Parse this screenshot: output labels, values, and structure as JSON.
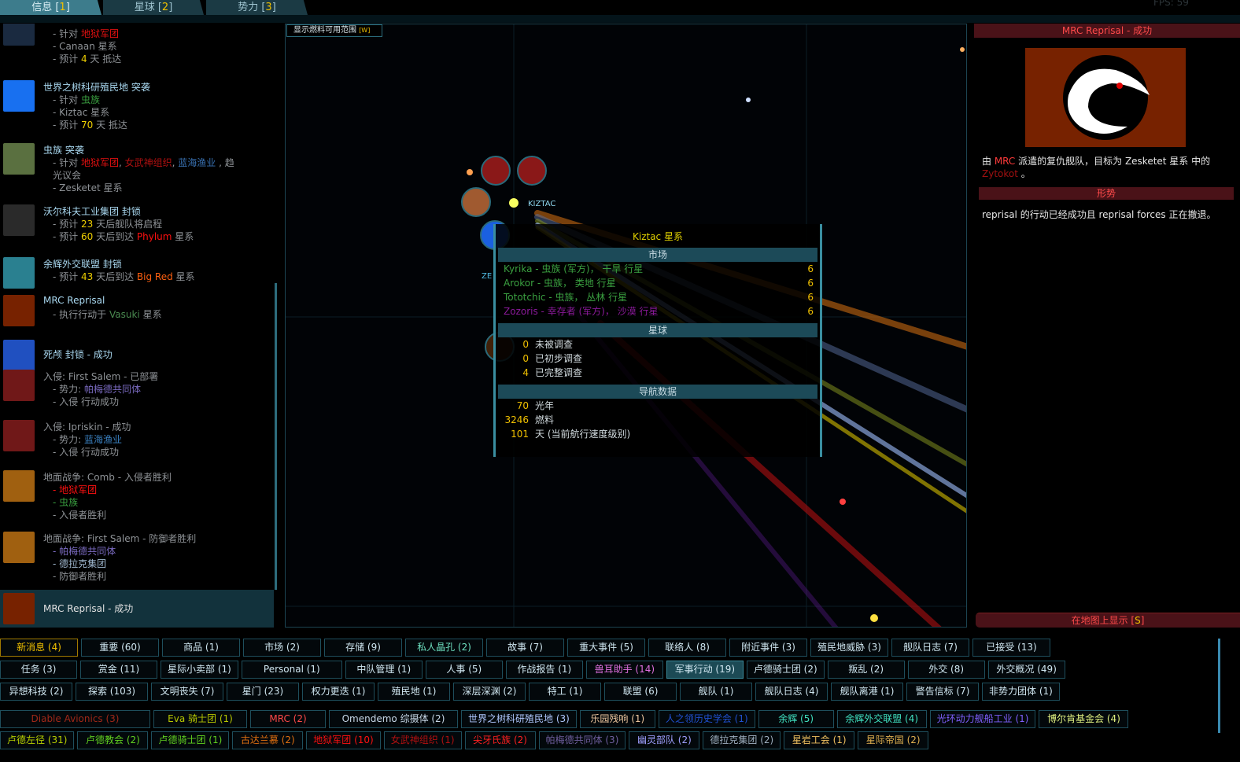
{
  "tabs": [
    {
      "label": "信息 [",
      "key": "1",
      "suffix": "]",
      "active": true
    },
    {
      "label": "星球 [",
      "key": "2",
      "suffix": "]"
    },
    {
      "label": "势力 [",
      "key": "3",
      "suffix": "]"
    }
  ],
  "fps_label": "FPS: 59",
  "map": {
    "fuel_button": "显示燃料可用范围",
    "fuel_key": "[W]",
    "system_label": "KIZTAC",
    "system_label2": "ZE"
  },
  "intel_items": [
    {
      "title": "",
      "icon": "triangle-faction-icon",
      "icon_color": "#1a2a40",
      "lines": [
        [
          {
            "t": "- 针对 "
          },
          {
            "t": "地狱军团",
            "c": "#e01010"
          }
        ],
        [
          {
            "t": "- Canaan 星系"
          }
        ],
        [
          {
            "t": "- 预计 "
          },
          {
            "t": "4",
            "c": "#f0d000"
          },
          {
            "t": " 天 抵达"
          }
        ]
      ]
    },
    {
      "title": "世界之树科研殖民地 突袭",
      "icon": "owl-faction-icon",
      "icon_color": "#1870f0",
      "lines": [
        [
          {
            "t": "- 针对 "
          },
          {
            "t": "虫族",
            "c": "#3aa040"
          }
        ],
        [
          {
            "t": "- Kiztac 星系"
          }
        ],
        [
          {
            "t": "- 预计 "
          },
          {
            "t": "70",
            "c": "#f0d000"
          },
          {
            "t": " 天 抵达"
          }
        ]
      ]
    },
    {
      "title": "虫族 突袭",
      "icon": "hive-faction-icon",
      "icon_color": "#5a7040",
      "lines": [
        [
          {
            "t": "- 针对 "
          },
          {
            "t": "地狱军团",
            "c": "#e01010"
          },
          {
            "t": ", "
          },
          {
            "t": "女武神组织",
            "c": "#b01010"
          },
          {
            "t": ", "
          },
          {
            "t": "蓝海渔业",
            "c": "#3870b0"
          },
          {
            "t": " , 趋"
          }
        ],
        [
          {
            "t": "  光议会"
          }
        ],
        [
          {
            "t": "- Zesketet 星系"
          }
        ]
      ]
    },
    {
      "title": "沃尔科夫工业集团 封锁",
      "icon": "v-faction-icon",
      "icon_color": "#2a2a2a",
      "lines": [
        [
          {
            "t": "- 预计 "
          },
          {
            "t": "23",
            "c": "#f0d000"
          },
          {
            "t": " 天后舰队将启程"
          }
        ],
        [
          {
            "t": "- 预计 "
          },
          {
            "t": "60",
            "c": "#f0d000"
          },
          {
            "t": " 天后到达 "
          },
          {
            "t": "Phylum",
            "c": "#ff1010"
          },
          {
            "t": " 星系"
          }
        ]
      ]
    },
    {
      "title": "余辉外交联盟 封锁",
      "icon": "afterglow-faction-icon",
      "icon_color": "#2a8090",
      "lines": [
        [
          {
            "t": "- 预计 "
          },
          {
            "t": "43",
            "c": "#f0d000"
          },
          {
            "t": " 天后到达 "
          },
          {
            "t": "Big Red",
            "c": "#ff6010"
          },
          {
            "t": " 星系"
          }
        ]
      ]
    },
    {
      "title": "MRC Reprisal",
      "icon": "mrc-bird-icon",
      "icon_color": "#772200",
      "lines": [
        [
          {
            "t": "- 执行行动于 "
          },
          {
            "t": "Vasuki",
            "c": "#4a8a50"
          },
          {
            "t": " 星系"
          }
        ]
      ]
    },
    {
      "title": "死颅 封锁 - 成功",
      "icon": "skull-faction-icon",
      "icon_color": "#2050c0",
      "lines": []
    },
    {
      "title": "入侵: First Salem - 已部署",
      "title_muted": true,
      "icon": "invasion-icon",
      "icon_color": "#701818",
      "lines": [
        [
          {
            "t": "- 势力: "
          },
          {
            "t": "帕梅德共同体",
            "c": "#7a6ac0"
          }
        ],
        [
          {
            "t": "- 入侵 行动成功"
          }
        ]
      ]
    },
    {
      "title": "入侵: Ipriskin - 成功",
      "title_muted": true,
      "icon": "invasion-icon",
      "icon_color": "#701818",
      "lines": [
        [
          {
            "t": "- 势力: "
          },
          {
            "t": "蓝海渔业",
            "c": "#3a80c0"
          }
        ],
        [
          {
            "t": "- 入侵 行动成功"
          }
        ]
      ]
    },
    {
      "title": "地面战争: Comb - 入侵者胜利",
      "title_muted": true,
      "icon": "ground-war-icon",
      "icon_color": "#a06010",
      "lines": [
        [
          {
            "t": "- 地狱军团",
            "c": "#ff1010"
          }
        ],
        [
          {
            "t": "- 虫族",
            "c": "#3aa040"
          }
        ],
        [
          {
            "t": "- 入侵者胜利"
          }
        ]
      ]
    },
    {
      "title": "地面战争: First Salem - 防御者胜利",
      "title_muted": true,
      "icon": "ground-war-icon",
      "icon_color": "#a06010",
      "lines": [
        [
          {
            "t": "- 帕梅德共同体",
            "c": "#7a6ac0"
          }
        ],
        [
          {
            "t": "- 德拉克集团",
            "c": "#a0b8d0"
          }
        ],
        [
          {
            "t": "- 防御者胜利"
          }
        ]
      ]
    },
    {
      "title": "MRC Reprisal - 成功",
      "icon": "mrc-bird-icon",
      "icon_color": "#772200",
      "selected": true,
      "lines": []
    }
  ],
  "tooltip": {
    "title": "Kiztac 星系",
    "market_header": "市场",
    "markets": [
      {
        "text": "Kyrika - 虫族 (军方)， 干旱 行星",
        "value": "6",
        "color": "#3aa040"
      },
      {
        "text": "Arokor - 虫族， 类地 行星",
        "value": "6",
        "color": "#3aa040"
      },
      {
        "text": "Tototchic - 虫族， 丛林 行星",
        "value": "6",
        "color": "#3aa040"
      },
      {
        "text": "Zozoris - 幸存者 (军方)， 沙漠 行星",
        "value": "6",
        "color": "#8a1a9a"
      }
    ],
    "planets_header": "星球",
    "planets": [
      {
        "n": "0",
        "label": "未被调查"
      },
      {
        "n": "0",
        "label": "已初步调查"
      },
      {
        "n": "4",
        "label": "已完整调查"
      }
    ],
    "nav_header": "导航数据",
    "nav": [
      {
        "n": "70",
        "label": "光年"
      },
      {
        "n": "3246",
        "label": "燃料"
      },
      {
        "n": "101",
        "label": "天 (当前航行速度级别)"
      }
    ]
  },
  "detail": {
    "title": "MRC Reprisal - 成功",
    "desc_pre": "由 ",
    "desc_faction": "MRC",
    "desc_mid": " 派遣的复仇舰队，目标为 Zesketet 星系 中的 ",
    "desc_target": "Zytokot",
    "desc_post": " 。",
    "situation_header": "形势",
    "situation": "reprisal 的行动已经成功且 reprisal forces 正在撤退。",
    "show_on_map": "在地图上显示 [",
    "show_key": "S",
    "show_suffix": "]"
  },
  "filter_rows": [
    [
      {
        "l": "新消息 (4)",
        "c": "#f0c000",
        "b": "#a07a00"
      },
      {
        "l": "重要 (60)"
      },
      {
        "l": "商品 (1)"
      },
      {
        "l": "市场 (2)"
      },
      {
        "l": "存储 (9)"
      },
      {
        "l": "私人晶孔 (2)",
        "c": "#6ee0c0"
      },
      {
        "l": "故事 (7)"
      },
      {
        "l": "重大事件 (5)"
      },
      {
        "l": "联络人 (8)"
      },
      {
        "l": "附近事件 (3)"
      },
      {
        "l": "殖民地威胁 (3)"
      },
      {
        "l": "舰队日志 (7)"
      },
      {
        "l": "已接受 (13)"
      }
    ],
    [
      {
        "l": "任务 (3)"
      },
      {
        "l": "赏金 (11)"
      },
      {
        "l": "星际小卖部 (1)"
      },
      {
        "l": "Personal (1)"
      },
      {
        "l": "中队管理 (1)"
      },
      {
        "l": "人事 (5)"
      },
      {
        "l": "作战报告 (1)"
      },
      {
        "l": "兽耳助手 (14)",
        "c": "#e070e0"
      },
      {
        "l": "军事行动 (19)",
        "sel": true
      },
      {
        "l": "卢德骑士团 (2)"
      },
      {
        "l": "叛乱 (2)"
      },
      {
        "l": "外交 (8)"
      },
      {
        "l": "外交概况 (49)"
      }
    ],
    [
      {
        "l": "异想科技 (2)"
      },
      {
        "l": "探索 (103)"
      },
      {
        "l": "文明丧失 (7)"
      },
      {
        "l": "星门 (23)"
      },
      {
        "l": "权力更迭 (1)"
      },
      {
        "l": "殖民地 (1)"
      },
      {
        "l": "深层深渊 (2)"
      },
      {
        "l": "特工 (1)"
      },
      {
        "l": "联盟 (6)"
      },
      {
        "l": "舰队 (1)"
      },
      {
        "l": "舰队日志 (4)"
      },
      {
        "l": "舰队离港 (1)"
      },
      {
        "l": "警告信标 (7)"
      },
      {
        "l": "非势力团体 (1)"
      }
    ],
    [
      {
        "l": "Diable Avionics (3)",
        "c": "#a02818"
      },
      {
        "l": "Eva 骑士团 (1)",
        "c": "#b8c800"
      },
      {
        "l": "MRC (2)",
        "c": "#ff4848"
      },
      {
        "l": "Omendemo 综摄体 (2)",
        "c": "#c8d8e8"
      },
      {
        "l": "世界之树科研殖民地 (3)",
        "c": "#b0c8ff"
      },
      {
        "l": "乐园残响 (1)",
        "c": "#f0c8a0"
      },
      {
        "l": "人之领历史学会 (1)",
        "c": "#2050d0"
      },
      {
        "l": "余辉 (5)",
        "c": "#40e0c0"
      },
      {
        "l": "余辉外交联盟 (4)",
        "c": "#40e0c0"
      },
      {
        "l": "光环动力舰船工业 (1)",
        "c": "#8060ff"
      },
      {
        "l": "博尔肯基金会 (4)",
        "c": "#e0f080"
      }
    ],
    [
      {
        "l": "卢德左径 (31)",
        "c": "#b8d000"
      },
      {
        "l": "卢德教会 (2)",
        "c": "#60d020"
      },
      {
        "l": "卢德骑士团 (1)",
        "c": "#60d020"
      },
      {
        "l": "古达兰慕 (2)",
        "c": "#e07010"
      },
      {
        "l": "地狱军团 (10)",
        "c": "#ff1010"
      },
      {
        "l": "女武神组织 (1)",
        "c": "#b01010"
      },
      {
        "l": "尖牙氏族 (2)",
        "c": "#ff2020"
      },
      {
        "l": "帕梅德共同体 (3)",
        "c": "#7060a0"
      },
      {
        "l": "幽灵部队 (2)",
        "c": "#a0a0ff"
      },
      {
        "l": "德拉克集团 (2)",
        "c": "#a0b0c0"
      },
      {
        "l": "星岩工会 (1)",
        "c": "#f0c060"
      },
      {
        "l": "星际帝国 (2)",
        "c": "#e0b050"
      }
    ]
  ]
}
